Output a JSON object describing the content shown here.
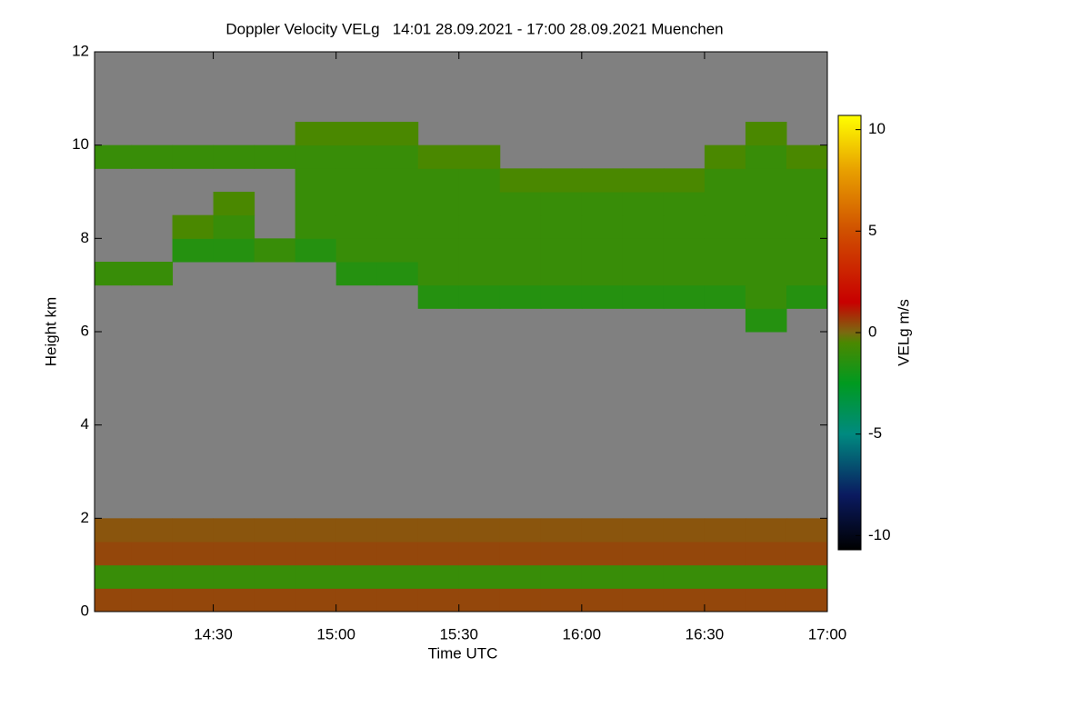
{
  "chart_data": {
    "type": "heatmap",
    "title": "Doppler Velocity VELg   14:01 28.09.2021 - 17:00 28.09.2021 Muenchen",
    "x_label": "Time UTC",
    "y_label": "Height km",
    "colorbar_label": "VELg m/s",
    "xlim": [
      841,
      1020
    ],
    "xticks": [
      {
        "value": 870,
        "label": "14:30"
      },
      {
        "value": 900,
        "label": "15:00"
      },
      {
        "value": 930,
        "label": "15:30"
      },
      {
        "value": 960,
        "label": "16:00"
      },
      {
        "value": 990,
        "label": "16:30"
      },
      {
        "value": 1020,
        "label": "17:00"
      }
    ],
    "ylim": [
      0,
      12
    ],
    "yticks": [
      0,
      2,
      4,
      6,
      8,
      10,
      12
    ],
    "clim": [
      -10.7,
      10.7
    ],
    "cticks": [
      -10,
      -5,
      0,
      5,
      10
    ],
    "background": "#808080",
    "colorscale": [
      [
        -10.7,
        "#000000"
      ],
      [
        -8,
        "#0a1a60"
      ],
      [
        -5,
        "#008a80"
      ],
      [
        -2.5,
        "#009a20"
      ],
      [
        -0.5,
        "#4a8800"
      ],
      [
        0,
        "#7a6a10"
      ],
      [
        1.5,
        "#c80000"
      ],
      [
        5,
        "#d05000"
      ],
      [
        8,
        "#e8a000"
      ],
      [
        10.7,
        "#ffff00"
      ]
    ],
    "x": [
      845,
      855,
      865,
      875,
      885,
      895,
      905,
      915,
      925,
      935,
      945,
      955,
      965,
      975,
      985,
      995,
      1005,
      1015
    ],
    "y": [
      0.25,
      0.75,
      1.25,
      1.75,
      2.25,
      2.75,
      3.25,
      3.75,
      4.25,
      4.75,
      5.25,
      5.75,
      6.25,
      6.75,
      7.25,
      7.75,
      8.25,
      8.75,
      9.25,
      9.75,
      10.25,
      10.75,
      11.25,
      11.75
    ],
    "z": [
      [
        0.5,
        0.5,
        0.5,
        0.5,
        0.5,
        0.5,
        0.5,
        0.5,
        0.5,
        0.5,
        0.5,
        0.5,
        0.5,
        0.5,
        0.5,
        0.5,
        0.5,
        0.5
      ],
      [
        -1,
        -1,
        -1,
        -1,
        -1,
        -1,
        -1,
        -1,
        -1,
        -1,
        -1,
        -1,
        -1,
        -1,
        -1,
        -1,
        -1,
        -1
      ],
      [
        0.5,
        0.5,
        0.5,
        0.5,
        0.5,
        0.5,
        0.5,
        0.5,
        0.5,
        0.5,
        0.5,
        0.5,
        0.5,
        0.5,
        0.5,
        0.5,
        0.5,
        0.5
      ],
      [
        0.3,
        0.3,
        0.3,
        0.3,
        0.3,
        0.3,
        0.3,
        0.3,
        0.3,
        0.3,
        0.3,
        0.3,
        0.3,
        0.3,
        0.3,
        0.3,
        0.3,
        0.3
      ],
      [
        null,
        null,
        null,
        null,
        null,
        null,
        null,
        null,
        null,
        null,
        null,
        null,
        null,
        null,
        null,
        null,
        null,
        null
      ],
      [
        null,
        null,
        null,
        null,
        null,
        null,
        null,
        null,
        null,
        null,
        null,
        null,
        null,
        null,
        null,
        null,
        null,
        null
      ],
      [
        null,
        null,
        null,
        null,
        null,
        null,
        null,
        null,
        null,
        null,
        null,
        null,
        null,
        null,
        null,
        null,
        null,
        null
      ],
      [
        null,
        null,
        null,
        null,
        null,
        null,
        null,
        null,
        null,
        null,
        null,
        null,
        null,
        null,
        null,
        null,
        null,
        null
      ],
      [
        null,
        null,
        null,
        null,
        null,
        null,
        null,
        null,
        null,
        null,
        null,
        null,
        null,
        null,
        null,
        null,
        null,
        null
      ],
      [
        null,
        null,
        null,
        null,
        null,
        null,
        null,
        null,
        null,
        null,
        null,
        null,
        null,
        null,
        null,
        null,
        null,
        null
      ],
      [
        null,
        null,
        null,
        null,
        null,
        null,
        null,
        null,
        null,
        null,
        null,
        null,
        null,
        null,
        null,
        null,
        null,
        null
      ],
      [
        null,
        null,
        null,
        null,
        null,
        null,
        null,
        null,
        null,
        null,
        null,
        null,
        null,
        null,
        null,
        null,
        null,
        null
      ],
      [
        null,
        null,
        null,
        null,
        null,
        null,
        null,
        null,
        null,
        null,
        null,
        null,
        null,
        null,
        null,
        null,
        -1.5,
        null
      ],
      [
        null,
        null,
        null,
        null,
        null,
        null,
        null,
        null,
        -1.5,
        -1.5,
        -1.5,
        -1.5,
        -1.5,
        -1.5,
        -1.5,
        -1.5,
        -1,
        -1.5
      ],
      [
        -1,
        -1,
        null,
        null,
        null,
        null,
        -1.5,
        -1.5,
        -1,
        -1,
        -1,
        -1,
        -1,
        -1,
        -1,
        -1,
        -1,
        -1
      ],
      [
        null,
        null,
        -1.5,
        -1.5,
        -1,
        -1.5,
        -1,
        -1,
        -1,
        -1,
        -1,
        -1,
        -1,
        -1,
        -1,
        -1,
        -1,
        -1
      ],
      [
        null,
        null,
        -0.5,
        -1,
        null,
        -1,
        -1,
        -1,
        -1,
        -1,
        -1,
        -1,
        -1,
        -1,
        -1,
        -1,
        -1,
        -1
      ],
      [
        null,
        null,
        null,
        -0.5,
        null,
        -1,
        -1,
        -1,
        -1,
        -1,
        -1,
        -1,
        -1,
        -1,
        -1,
        -1,
        -1,
        -1
      ],
      [
        null,
        null,
        null,
        null,
        null,
        -1,
        -1,
        -1,
        -1,
        -1,
        -0.5,
        -0.5,
        -0.5,
        -0.5,
        -0.5,
        -1,
        -1,
        -1
      ],
      [
        -1,
        -1,
        -1,
        -1,
        -1,
        -1,
        -1,
        -1,
        -0.5,
        -0.5,
        null,
        null,
        null,
        null,
        null,
        -0.5,
        -1,
        -0.5
      ],
      [
        null,
        null,
        null,
        null,
        null,
        -0.5,
        -0.5,
        -0.5,
        null,
        null,
        null,
        null,
        null,
        null,
        null,
        null,
        -0.5,
        null
      ],
      [
        null,
        null,
        null,
        null,
        null,
        null,
        null,
        null,
        null,
        null,
        null,
        null,
        null,
        null,
        null,
        null,
        null,
        null
      ],
      [
        null,
        null,
        null,
        null,
        null,
        null,
        null,
        null,
        null,
        null,
        null,
        null,
        null,
        null,
        null,
        null,
        null,
        null
      ],
      [
        null,
        null,
        null,
        null,
        null,
        null,
        null,
        null,
        null,
        null,
        null,
        null,
        null,
        null,
        null,
        null,
        null,
        null
      ]
    ]
  }
}
